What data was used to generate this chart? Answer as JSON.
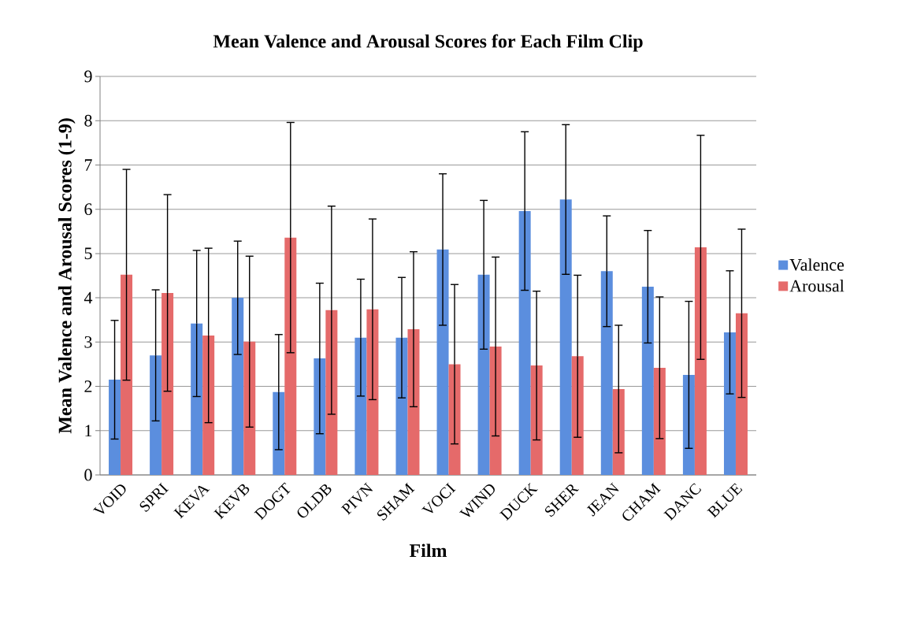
{
  "chart_data": {
    "type": "bar",
    "title": "Mean Valence and Arousal Scores for Each Film Clip",
    "xlabel": "Film",
    "ylabel": "Mean Valence and Arousal Scores (1-9)",
    "categories": [
      "VOID",
      "SPRI",
      "KEVA",
      "KEVB",
      "DOGT",
      "OLDB",
      "PIVN",
      "SHAM",
      "VOCI",
      "WIND",
      "DUCK",
      "SHER",
      "JEAN",
      "CHAM",
      "DANC",
      "BLUE"
    ],
    "series": [
      {
        "name": "Valence",
        "color": "#5b8ede",
        "values": [
          2.15,
          2.7,
          3.42,
          4.0,
          1.87,
          2.63,
          3.1,
          3.1,
          5.09,
          4.52,
          5.96,
          6.22,
          4.6,
          4.25,
          2.26,
          3.22
        ],
        "errors": [
          1.34,
          1.48,
          1.65,
          1.28,
          1.3,
          1.7,
          1.32,
          1.36,
          1.71,
          1.68,
          1.79,
          1.69,
          1.25,
          1.27,
          1.66,
          1.39
        ]
      },
      {
        "name": "Arousal",
        "color": "#e56a6a",
        "values": [
          4.52,
          4.11,
          3.15,
          3.01,
          5.36,
          3.72,
          3.74,
          3.29,
          2.5,
          2.9,
          2.47,
          2.68,
          1.94,
          2.42,
          5.14,
          3.65
        ],
        "errors": [
          2.38,
          2.22,
          1.97,
          1.93,
          2.6,
          2.35,
          2.04,
          1.75,
          1.8,
          2.02,
          1.68,
          1.83,
          1.44,
          1.6,
          2.53,
          1.9
        ]
      }
    ],
    "ylim": [
      0,
      9
    ],
    "yticks": [
      0,
      1,
      2,
      3,
      4,
      5,
      6,
      7,
      8,
      9
    ],
    "grid": "y",
    "legend": "right"
  }
}
